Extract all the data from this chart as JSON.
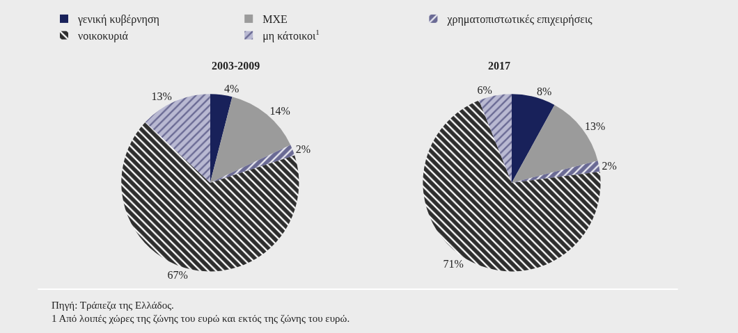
{
  "chart_data": {
    "type": "pie",
    "categories": [
      "γενική κυβέρνηση",
      "ΜΧΕ",
      "χρηματοπιστωτικές επιχειρήσεις",
      "νοικοκυριά",
      "μη κάτοικοι$^{1}$"
    ],
    "colors": [
      "#18215a",
      "#9b9b9b",
      "#6a6a94",
      "#2e2e2e",
      "#b9b9d2"
    ],
    "legend": "top left",
    "series": [
      {
        "name": "2003-2009",
        "values": [
          4,
          14,
          2,
          67,
          13
        ],
        "value_labels": [
          "4%",
          "14%",
          "2%",
          "67%",
          "13%"
        ]
      },
      {
        "name": "2017",
        "values": [
          8,
          13,
          2,
          71,
          6
        ],
        "value_labels": [
          "8%",
          "13%",
          "2%",
          "71%",
          "6%"
        ]
      }
    ],
    "annotations": [
      "Πηγή: Τράπεζα της Ελλάδος.",
      "1 Από λοιπές χώρες της ζώνης του ευρώ και εκτός της ζώνης του ευρώ."
    ]
  }
}
